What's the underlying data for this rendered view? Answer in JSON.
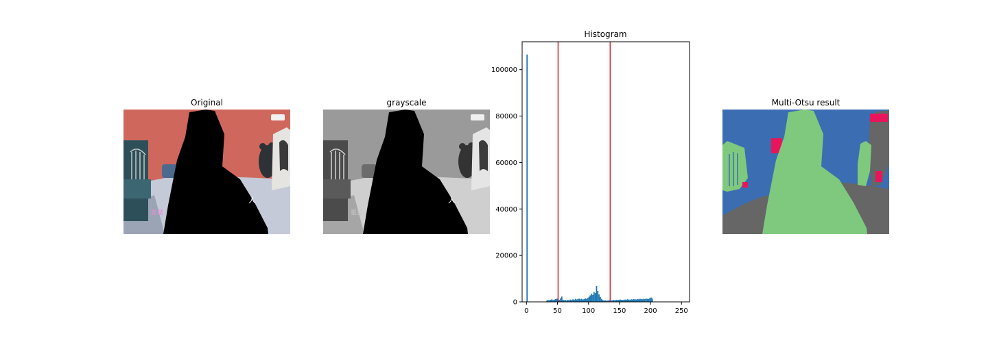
{
  "panels": {
    "original": {
      "title": "Original"
    },
    "grayscale": {
      "title": "grayscale"
    },
    "result": {
      "title": "Multi-Otsu result"
    }
  },
  "overlay_text": {
    "left_caption": "星星",
    "right_caption": "人"
  },
  "colors": {
    "bar": "#1f77b4",
    "threshold": "#d62728",
    "wall_original": "#d0675c",
    "wall_gray": "#9a9a9a",
    "class_low": "#3b6db2",
    "class_mid": "#7fc97f",
    "class_high": "#666666",
    "class_edge": "#e8155c"
  },
  "chart_data": {
    "type": "bar",
    "title": "Histogram",
    "xlabel": "",
    "ylabel": "",
    "xlim": [
      -7,
      263
    ],
    "ylim": [
      0,
      112000
    ],
    "xticks": [
      0,
      50,
      100,
      150,
      200,
      250
    ],
    "yticks": [
      0,
      20000,
      40000,
      60000,
      80000,
      100000
    ],
    "thresholds": [
      51,
      135
    ],
    "bins": [
      {
        "x": 0,
        "count": 106500
      },
      {
        "x": 32,
        "count": 600
      },
      {
        "x": 34,
        "count": 800
      },
      {
        "x": 36,
        "count": 700
      },
      {
        "x": 38,
        "count": 900
      },
      {
        "x": 40,
        "count": 1100
      },
      {
        "x": 42,
        "count": 800
      },
      {
        "x": 44,
        "count": 1000
      },
      {
        "x": 46,
        "count": 1200
      },
      {
        "x": 48,
        "count": 1400
      },
      {
        "x": 50,
        "count": 1300
      },
      {
        "x": 52,
        "count": 900
      },
      {
        "x": 54,
        "count": 1500
      },
      {
        "x": 56,
        "count": 2300
      },
      {
        "x": 58,
        "count": 900
      },
      {
        "x": 60,
        "count": 700
      },
      {
        "x": 62,
        "count": 800
      },
      {
        "x": 64,
        "count": 600
      },
      {
        "x": 66,
        "count": 900
      },
      {
        "x": 68,
        "count": 700
      },
      {
        "x": 70,
        "count": 1000
      },
      {
        "x": 72,
        "count": 800
      },
      {
        "x": 74,
        "count": 1100
      },
      {
        "x": 76,
        "count": 900
      },
      {
        "x": 78,
        "count": 1300
      },
      {
        "x": 80,
        "count": 1000
      },
      {
        "x": 82,
        "count": 1200
      },
      {
        "x": 84,
        "count": 1400
      },
      {
        "x": 86,
        "count": 1100
      },
      {
        "x": 88,
        "count": 1300
      },
      {
        "x": 90,
        "count": 1000
      },
      {
        "x": 92,
        "count": 1200
      },
      {
        "x": 94,
        "count": 1500
      },
      {
        "x": 96,
        "count": 1300
      },
      {
        "x": 98,
        "count": 1700
      },
      {
        "x": 100,
        "count": 2200
      },
      {
        "x": 102,
        "count": 2800
      },
      {
        "x": 104,
        "count": 3500
      },
      {
        "x": 106,
        "count": 3000
      },
      {
        "x": 108,
        "count": 4300
      },
      {
        "x": 110,
        "count": 3800
      },
      {
        "x": 112,
        "count": 6800
      },
      {
        "x": 114,
        "count": 4700
      },
      {
        "x": 116,
        "count": 3200
      },
      {
        "x": 118,
        "count": 2100
      },
      {
        "x": 120,
        "count": 1300
      },
      {
        "x": 122,
        "count": 800
      },
      {
        "x": 124,
        "count": 600
      },
      {
        "x": 126,
        "count": 700
      },
      {
        "x": 128,
        "count": 500
      },
      {
        "x": 130,
        "count": 600
      },
      {
        "x": 132,
        "count": 700
      },
      {
        "x": 134,
        "count": 800
      },
      {
        "x": 136,
        "count": 600
      },
      {
        "x": 138,
        "count": 700
      },
      {
        "x": 140,
        "count": 800
      },
      {
        "x": 142,
        "count": 700
      },
      {
        "x": 144,
        "count": 900
      },
      {
        "x": 146,
        "count": 800
      },
      {
        "x": 148,
        "count": 900
      },
      {
        "x": 150,
        "count": 1000
      },
      {
        "x": 152,
        "count": 900
      },
      {
        "x": 154,
        "count": 800
      },
      {
        "x": 156,
        "count": 900
      },
      {
        "x": 158,
        "count": 1000
      },
      {
        "x": 160,
        "count": 900
      },
      {
        "x": 162,
        "count": 1100
      },
      {
        "x": 164,
        "count": 1000
      },
      {
        "x": 166,
        "count": 900
      },
      {
        "x": 168,
        "count": 1100
      },
      {
        "x": 170,
        "count": 1000
      },
      {
        "x": 172,
        "count": 1200
      },
      {
        "x": 174,
        "count": 1100
      },
      {
        "x": 176,
        "count": 1000
      },
      {
        "x": 178,
        "count": 1200
      },
      {
        "x": 180,
        "count": 1100
      },
      {
        "x": 182,
        "count": 1300
      },
      {
        "x": 184,
        "count": 1200
      },
      {
        "x": 186,
        "count": 1100
      },
      {
        "x": 188,
        "count": 1300
      },
      {
        "x": 190,
        "count": 1200
      },
      {
        "x": 192,
        "count": 1400
      },
      {
        "x": 194,
        "count": 1300
      },
      {
        "x": 196,
        "count": 1200
      },
      {
        "x": 198,
        "count": 1600
      },
      {
        "x": 200,
        "count": 1900
      },
      {
        "x": 202,
        "count": 1400
      }
    ]
  }
}
